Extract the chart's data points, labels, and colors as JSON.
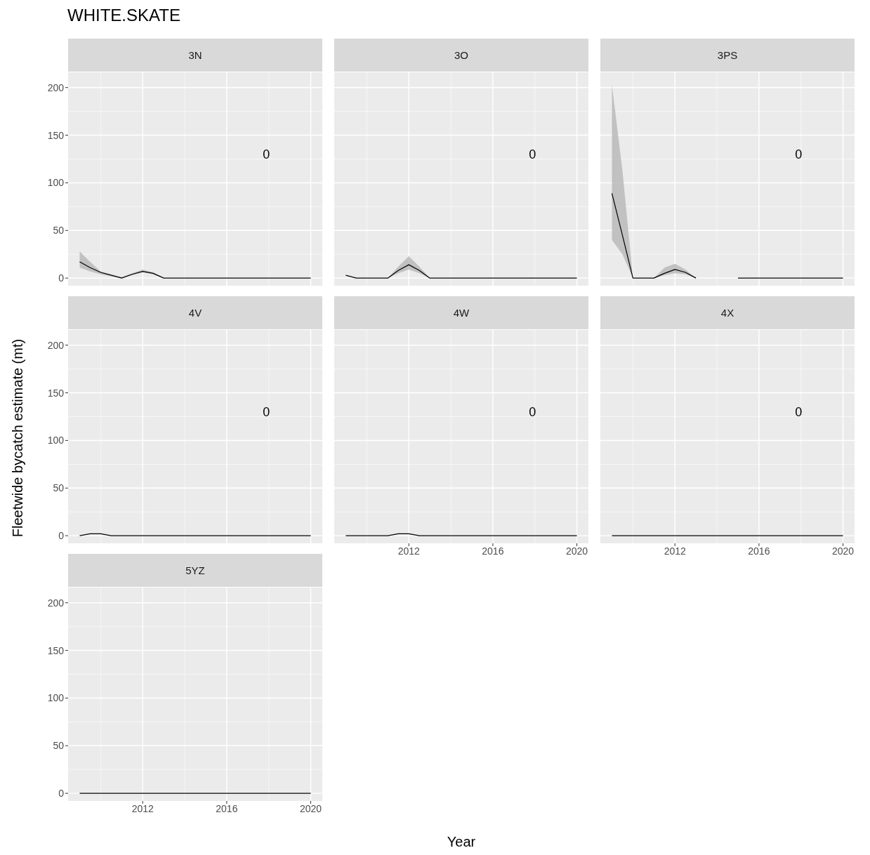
{
  "chart_data": [
    {
      "type": "line",
      "title": "WHITE.SKATE",
      "subtitle": "3N",
      "x": [
        2009,
        2009.5,
        2010,
        2010.5,
        2011,
        2011.5,
        2012,
        2012.5,
        2013,
        2013.5,
        2014,
        2014.5,
        2015,
        2015.5,
        2016,
        2016.5,
        2017,
        2017.5,
        2018,
        2018.5,
        2019,
        2019.5,
        2020
      ],
      "xlim": [
        2008.45,
        2020.55
      ],
      "xticks": [
        2012,
        2016,
        2020
      ],
      "ylim": [
        -8,
        216
      ],
      "yticks": [
        0,
        50,
        100,
        150,
        200
      ],
      "grid": true,
      "tick_labels": "y",
      "annotations": [
        "0"
      ],
      "series": [
        {
          "color": "#000000",
          "values": [
            17,
            11,
            6,
            3,
            0,
            4,
            7,
            5,
            0,
            0,
            0,
            0,
            0,
            0,
            0,
            0,
            0,
            0,
            0,
            0,
            0,
            0,
            0
          ],
          "lower": [
            11,
            7,
            4,
            2,
            0,
            3,
            6,
            4,
            0,
            0,
            0,
            0,
            0,
            0,
            0,
            0,
            0,
            0,
            0,
            0,
            0,
            0,
            0
          ],
          "upper": [
            28,
            17,
            7,
            4,
            1,
            5,
            9,
            6,
            0,
            0,
            0,
            0,
            0,
            0,
            0,
            0,
            0,
            0,
            0,
            0,
            0,
            0,
            0
          ]
        }
      ]
    },
    {
      "type": "line",
      "subtitle": "3O",
      "x": [
        2009,
        2009.5,
        2010,
        2010.5,
        2011,
        2011.5,
        2012,
        2012.5,
        2013,
        2013.5,
        2014,
        2014.5,
        2015,
        2015.5,
        2016,
        2016.5,
        2017,
        2017.5,
        2018,
        2018.5,
        2019,
        2019.5,
        2020
      ],
      "xlim": [
        2008.45,
        2020.55
      ],
      "xticks": [
        2012,
        2016,
        2020
      ],
      "ylim": [
        -8,
        216
      ],
      "yticks": [
        0,
        50,
        100,
        150,
        200
      ],
      "grid": true,
      "tick_labels": false,
      "annotations": [
        "0"
      ],
      "series": [
        {
          "color": "#000000",
          "values": [
            3,
            0,
            0,
            0,
            0,
            8,
            14,
            8,
            0,
            0,
            0,
            0,
            0,
            0,
            0,
            0,
            0,
            0,
            0,
            0,
            0,
            0,
            0
          ],
          "lower": [
            3,
            0,
            0,
            0,
            0,
            5,
            9,
            5,
            0,
            0,
            0,
            0,
            0,
            0,
            0,
            0,
            0,
            0,
            0,
            0,
            0,
            0,
            0
          ],
          "upper": [
            3,
            0,
            0,
            0,
            0,
            12,
            23,
            12,
            0,
            0,
            0,
            0,
            0,
            0,
            0,
            0,
            0,
            0,
            0,
            0,
            0,
            0,
            0
          ]
        }
      ]
    },
    {
      "type": "line",
      "subtitle": "3PS",
      "x": [
        2009,
        2009.5,
        2010,
        2010.5,
        2011,
        2011.5,
        2012,
        2012.5,
        2013,
        2013.5,
        2014,
        2014.5,
        2015,
        2015.5,
        2016,
        2016.5,
        2017,
        2017.5,
        2018,
        2018.5,
        2019,
        2019.5,
        2020
      ],
      "xlim": [
        2008.45,
        2020.55
      ],
      "xticks": [
        2012,
        2016,
        2020
      ],
      "ylim": [
        -8,
        216
      ],
      "yticks": [
        0,
        50,
        100,
        150,
        200
      ],
      "grid": true,
      "tick_labels": false,
      "annotations": [
        "0"
      ],
      "series": [
        {
          "color": "#000000",
          "values": [
            89,
            45,
            0,
            0,
            0,
            5,
            9,
            6,
            0,
            null,
            null,
            null,
            0,
            0,
            0,
            0,
            0,
            0,
            0,
            0,
            0,
            0,
            0
          ],
          "lower": [
            40,
            25,
            0,
            0,
            0,
            3,
            5,
            4,
            0,
            null,
            null,
            null,
            null,
            null,
            null,
            null,
            null,
            null,
            null,
            null,
            null,
            null,
            null
          ],
          "upper": [
            203,
            113,
            0,
            0,
            0,
            11,
            15,
            9,
            0,
            null,
            null,
            null,
            null,
            null,
            null,
            null,
            null,
            null,
            null,
            null,
            null,
            null,
            null
          ]
        }
      ]
    },
    {
      "type": "line",
      "subtitle": "4V",
      "ylabel": "Fleetwide bycatch estimate (mt)",
      "x": [
        2009,
        2009.5,
        2010,
        2010.5,
        2011,
        2011.5,
        2012,
        2012.5,
        2013,
        2013.5,
        2014,
        2014.5,
        2015,
        2015.5,
        2016,
        2016.5,
        2017,
        2017.5,
        2018,
        2018.5,
        2019,
        2019.5,
        2020
      ],
      "xlim": [
        2008.45,
        2020.55
      ],
      "xticks": [
        2012,
        2016,
        2020
      ],
      "ylim": [
        -8,
        216
      ],
      "yticks": [
        0,
        50,
        100,
        150,
        200
      ],
      "grid": true,
      "tick_labels": "y",
      "annotations": [
        "0"
      ],
      "series": [
        {
          "color": "#000000",
          "values": [
            0,
            2,
            2,
            0,
            0,
            0,
            0,
            0,
            0,
            0,
            0,
            0,
            0,
            0,
            0,
            0,
            0,
            0,
            0,
            0,
            0,
            0,
            0
          ]
        }
      ]
    },
    {
      "type": "line",
      "subtitle": "4W",
      "xlabel": "Year",
      "x": [
        2009,
        2009.5,
        2010,
        2010.5,
        2011,
        2011.5,
        2012,
        2012.5,
        2013,
        2013.5,
        2014,
        2014.5,
        2015,
        2015.5,
        2016,
        2016.5,
        2017,
        2017.5,
        2018,
        2018.5,
        2019,
        2019.5,
        2020
      ],
      "xlim": [
        2008.45,
        2020.55
      ],
      "xticks": [
        2012,
        2016,
        2020
      ],
      "ylim": [
        -8,
        216
      ],
      "yticks": [
        0,
        50,
        100,
        150,
        200
      ],
      "grid": true,
      "tick_labels": "x",
      "annotations": [
        "0"
      ],
      "series": [
        {
          "color": "#000000",
          "values": [
            0,
            0,
            0,
            0,
            0,
            2,
            2,
            0,
            0,
            0,
            0,
            0,
            0,
            0,
            0,
            0,
            0,
            0,
            0,
            0,
            0,
            0,
            0
          ]
        }
      ]
    },
    {
      "type": "line",
      "subtitle": "4X",
      "x": [
        2009,
        2009.5,
        2010,
        2010.5,
        2011,
        2011.5,
        2012,
        2012.5,
        2013,
        2013.5,
        2014,
        2014.5,
        2015,
        2015.5,
        2016,
        2016.5,
        2017,
        2017.5,
        2018,
        2018.5,
        2019,
        2019.5,
        2020
      ],
      "xlim": [
        2008.45,
        2020.55
      ],
      "xticks": [
        2012,
        2016,
        2020
      ],
      "ylim": [
        -8,
        216
      ],
      "yticks": [
        0,
        50,
        100,
        150,
        200
      ],
      "grid": true,
      "tick_labels": "x",
      "annotations": [
        "0"
      ],
      "series": [
        {
          "color": "#000000",
          "values": [
            0,
            0,
            0,
            0,
            0,
            0,
            0,
            0,
            0,
            0,
            0,
            0,
            0,
            0,
            0,
            0,
            0,
            0,
            0,
            0,
            0,
            0,
            0
          ]
        }
      ]
    },
    {
      "type": "line",
      "subtitle": "5YZ",
      "x": [
        2009,
        2009.5,
        2010,
        2010.5,
        2011,
        2011.5,
        2012,
        2012.5,
        2013,
        2013.5,
        2014,
        2014.5,
        2015,
        2015.5,
        2016,
        2016.5,
        2017,
        2017.5,
        2018,
        2018.5,
        2019,
        2019.5,
        2020
      ],
      "xlim": [
        2008.45,
        2020.55
      ],
      "xticks": [
        2012,
        2016,
        2020
      ],
      "ylim": [
        -8,
        216
      ],
      "yticks": [
        0,
        50,
        100,
        150,
        200
      ],
      "grid": true,
      "series": [
        {
          "color": "#000000",
          "values": [
            0,
            0,
            0,
            0,
            0,
            0,
            0,
            0,
            0,
            0,
            0,
            0,
            0,
            0,
            0,
            0,
            0,
            0,
            0,
            0,
            0,
            0,
            0
          ]
        }
      ]
    }
  ]
}
